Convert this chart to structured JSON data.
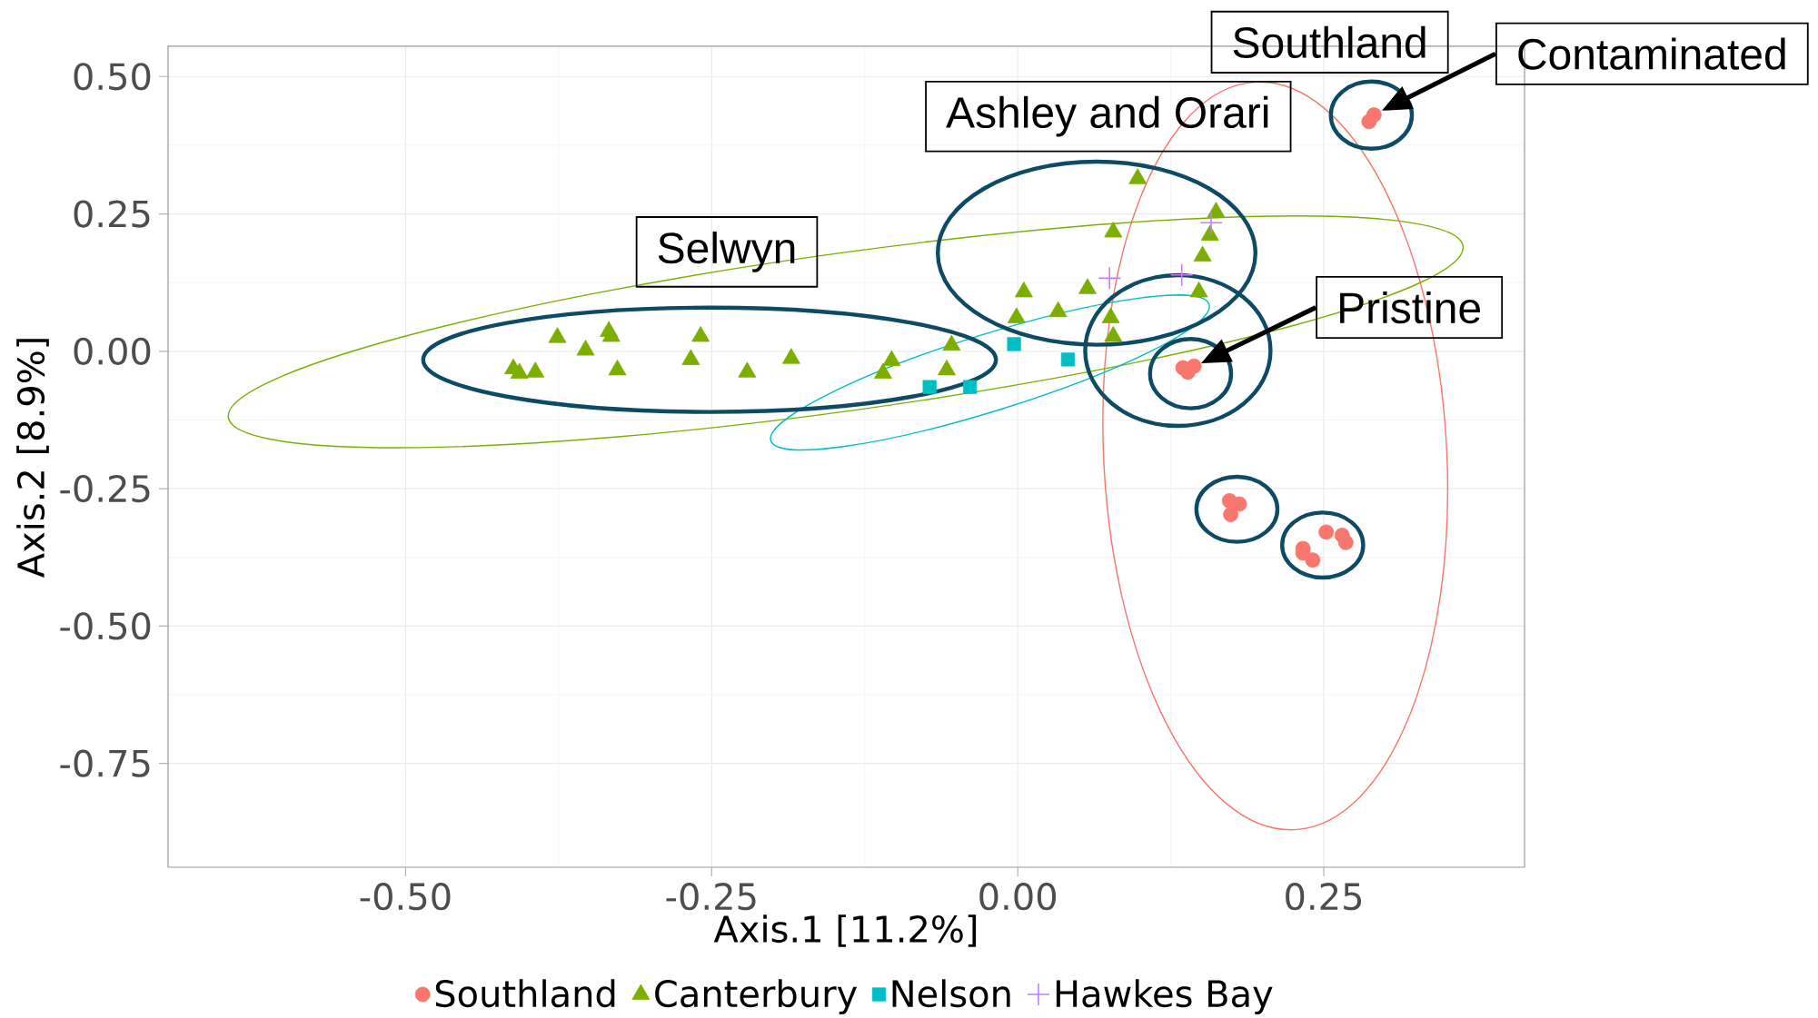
{
  "chart_data": {
    "type": "scatter",
    "xlabel": "Axis.1   [11.2%]",
    "ylabel": "Axis.2   [8.9%]",
    "xlim": [
      -0.694,
      0.414
    ],
    "ylim": [
      -0.939,
      0.555
    ],
    "xticks": [
      {
        "value": -0.5,
        "label": "-0.50"
      },
      {
        "value": -0.25,
        "label": "-0.25"
      },
      {
        "value": 0,
        "label": "0.00"
      },
      {
        "value": 0.25,
        "label": "0.25"
      }
    ],
    "yticks": [
      {
        "value": -0.75,
        "label": "-0.75"
      },
      {
        "value": -0.5,
        "label": "-0.50"
      },
      {
        "value": -0.25,
        "label": "-0.25"
      },
      {
        "value": 0,
        "label": "0.00"
      },
      {
        "value": 0.25,
        "label": "0.25"
      },
      {
        "value": 0.5,
        "label": "0.50"
      }
    ],
    "grid": true,
    "legend": "bottom",
    "series": [
      {
        "name": "Southland",
        "color": "#f8766d",
        "marker": "circle",
        "x": [
          0.291,
          0.287,
          0.135,
          0.144,
          0.139,
          0.173,
          0.181,
          0.174,
          0.252,
          0.265,
          0.268,
          0.233,
          0.233,
          0.241
        ],
        "values": [
          0.43,
          0.418,
          -0.03,
          -0.027,
          -0.038,
          -0.272,
          -0.278,
          -0.297,
          -0.329,
          -0.335,
          -0.348,
          -0.359,
          -0.367,
          -0.38
        ]
      },
      {
        "name": "Canterbury",
        "color": "#7cae00",
        "marker": "triangle",
        "x": [
          -0.412,
          -0.407,
          -0.394,
          -0.376,
          -0.353,
          -0.334,
          -0.332,
          -0.327,
          -0.267,
          -0.259,
          -0.221,
          -0.185,
          -0.11,
          -0.103,
          -0.058,
          -0.054,
          -0.001,
          0.005,
          0.033,
          0.057,
          0.076,
          0.078,
          0.078,
          0.098,
          0.148,
          0.151,
          0.157,
          0.162
        ],
        "values": [
          -0.032,
          -0.04,
          -0.038,
          0.025,
          0.002,
          0.036,
          0.027,
          -0.034,
          -0.015,
          0.027,
          -0.038,
          -0.013,
          -0.04,
          -0.017,
          -0.034,
          0.011,
          0.061,
          0.108,
          0.072,
          0.114,
          0.061,
          0.027,
          0.217,
          0.314,
          0.108,
          0.173,
          0.211,
          0.253
        ]
      },
      {
        "name": "Nelson",
        "color": "#00bfc4",
        "marker": "square",
        "x": [
          -0.072,
          -0.039,
          -0.003,
          0.041
        ],
        "values": [
          -0.065,
          -0.065,
          0.013,
          -0.015
        ]
      },
      {
        "name": "Hawkes Bay",
        "color": "#c77cff",
        "marker": "cross",
        "x": [
          0.075,
          0.134,
          0.158
        ],
        "values": [
          0.133,
          0.139,
          0.234
        ]
      }
    ],
    "annotations": [
      "Southland",
      "Contaminated",
      "Ashley and Orari",
      "Selwyn",
      "Pristine"
    ]
  }
}
